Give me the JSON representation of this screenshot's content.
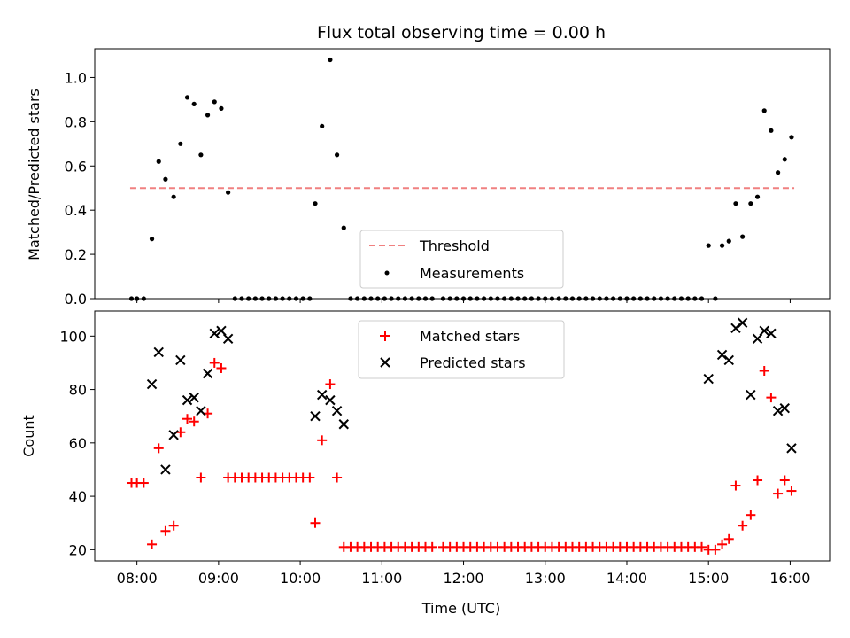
{
  "chart_data": [
    {
      "type": "scatter",
      "title": "Flux total observing time = 0.00 h",
      "xlabel": "",
      "ylabel": "Matched/Predicted stars",
      "ylim": [
        0,
        1.13
      ],
      "yticks": [
        "0.0",
        "0.2",
        "0.4",
        "0.6",
        "0.8",
        "1.0"
      ],
      "grid": false,
      "legend_position": "bottom-center",
      "threshold": {
        "name": "Threshold",
        "value": 0.5,
        "x_start": "07:55",
        "x_end": "16:03",
        "color": "#f08080",
        "style": "dashed"
      },
      "series": [
        {
          "name": "Measurements",
          "color": "#000000",
          "marker": "dot",
          "points": [
            [
              "07:56",
              0.0
            ],
            [
              "08:00",
              0.0
            ],
            [
              "08:05",
              0.0
            ],
            [
              "08:11",
              0.27
            ],
            [
              "08:16",
              0.62
            ],
            [
              "08:21",
              0.54
            ],
            [
              "08:27",
              0.46
            ],
            [
              "08:32",
              0.7
            ],
            [
              "08:37",
              0.91
            ],
            [
              "08:42",
              0.88
            ],
            [
              "08:47",
              0.65
            ],
            [
              "08:52",
              0.83
            ],
            [
              "08:57",
              0.89
            ],
            [
              "09:02",
              0.86
            ],
            [
              "09:07",
              0.48
            ],
            [
              "09:12",
              0.0
            ],
            [
              "09:17",
              0.0
            ],
            [
              "09:22",
              0.0
            ],
            [
              "09:27",
              0.0
            ],
            [
              "09:32",
              0.0
            ],
            [
              "09:37",
              0.0
            ],
            [
              "09:42",
              0.0
            ],
            [
              "09:47",
              0.0
            ],
            [
              "09:52",
              0.0
            ],
            [
              "09:57",
              0.0
            ],
            [
              "10:02",
              0.0
            ],
            [
              "10:07",
              0.0
            ],
            [
              "10:11",
              0.43
            ],
            [
              "10:16",
              0.78
            ],
            [
              "10:22",
              1.08
            ],
            [
              "10:27",
              0.65
            ],
            [
              "10:32",
              0.32
            ],
            [
              "10:37",
              0.0
            ],
            [
              "10:42",
              0.0
            ],
            [
              "10:47",
              0.0
            ],
            [
              "10:52",
              0.0
            ],
            [
              "10:57",
              0.0
            ],
            [
              "11:02",
              0.0
            ],
            [
              "11:07",
              0.0
            ],
            [
              "11:12",
              0.0
            ],
            [
              "11:17",
              0.0
            ],
            [
              "11:22",
              0.0
            ],
            [
              "11:27",
              0.0
            ],
            [
              "11:32",
              0.0
            ],
            [
              "11:37",
              0.0
            ],
            [
              "11:45",
              0.0
            ],
            [
              "11:50",
              0.0
            ],
            [
              "11:55",
              0.0
            ],
            [
              "12:00",
              0.0
            ],
            [
              "12:05",
              0.0
            ],
            [
              "12:10",
              0.0
            ],
            [
              "12:15",
              0.0
            ],
            [
              "12:20",
              0.0
            ],
            [
              "12:25",
              0.0
            ],
            [
              "12:30",
              0.0
            ],
            [
              "12:35",
              0.0
            ],
            [
              "12:40",
              0.0
            ],
            [
              "12:45",
              0.0
            ],
            [
              "12:50",
              0.0
            ],
            [
              "12:55",
              0.0
            ],
            [
              "13:00",
              0.0
            ],
            [
              "13:05",
              0.0
            ],
            [
              "13:10",
              0.0
            ],
            [
              "13:15",
              0.0
            ],
            [
              "13:20",
              0.0
            ],
            [
              "13:25",
              0.0
            ],
            [
              "13:30",
              0.0
            ],
            [
              "13:35",
              0.0
            ],
            [
              "13:40",
              0.0
            ],
            [
              "13:45",
              0.0
            ],
            [
              "13:50",
              0.0
            ],
            [
              "13:55",
              0.0
            ],
            [
              "14:00",
              0.0
            ],
            [
              "14:05",
              0.0
            ],
            [
              "14:10",
              0.0
            ],
            [
              "14:15",
              0.0
            ],
            [
              "14:20",
              0.0
            ],
            [
              "14:25",
              0.0
            ],
            [
              "14:30",
              0.0
            ],
            [
              "14:35",
              0.0
            ],
            [
              "14:40",
              0.0
            ],
            [
              "14:45",
              0.0
            ],
            [
              "14:50",
              0.0
            ],
            [
              "14:55",
              0.0
            ],
            [
              "15:00",
              0.24
            ],
            [
              "15:05",
              0.0
            ],
            [
              "15:10",
              0.24
            ],
            [
              "15:15",
              0.26
            ],
            [
              "15:20",
              0.43
            ],
            [
              "15:25",
              0.28
            ],
            [
              "15:31",
              0.43
            ],
            [
              "15:36",
              0.46
            ],
            [
              "15:41",
              0.85
            ],
            [
              "15:46",
              0.76
            ],
            [
              "15:51",
              0.57
            ],
            [
              "15:56",
              0.63
            ],
            [
              "16:01",
              0.73
            ]
          ]
        }
      ]
    },
    {
      "type": "scatter",
      "title": "",
      "xlabel": "Time (UTC)",
      "ylabel": "Count",
      "ylim": [
        15.8,
        109.4
      ],
      "yticks": [
        "20",
        "40",
        "60",
        "80",
        "100"
      ],
      "xlim": [
        "07:29",
        "16:29"
      ],
      "xticks": [
        "08:00",
        "09:00",
        "10:00",
        "11:00",
        "12:00",
        "13:00",
        "14:00",
        "15:00",
        "16:00"
      ],
      "grid": false,
      "legend_position": "top-center",
      "series": [
        {
          "name": "Matched stars",
          "color": "#ff0000",
          "marker": "plus",
          "points": [
            [
              "07:56",
              45
            ],
            [
              "08:00",
              45
            ],
            [
              "08:05",
              45
            ],
            [
              "08:11",
              22
            ],
            [
              "08:16",
              58
            ],
            [
              "08:21",
              27
            ],
            [
              "08:27",
              29
            ],
            [
              "08:32",
              64
            ],
            [
              "08:37",
              69
            ],
            [
              "08:42",
              68
            ],
            [
              "08:47",
              47
            ],
            [
              "08:52",
              71
            ],
            [
              "08:57",
              90
            ],
            [
              "09:02",
              88
            ],
            [
              "09:07",
              47
            ],
            [
              "09:12",
              47
            ],
            [
              "09:17",
              47
            ],
            [
              "09:22",
              47
            ],
            [
              "09:27",
              47
            ],
            [
              "09:32",
              47
            ],
            [
              "09:37",
              47
            ],
            [
              "09:42",
              47
            ],
            [
              "09:47",
              47
            ],
            [
              "09:52",
              47
            ],
            [
              "09:57",
              47
            ],
            [
              "10:02",
              47
            ],
            [
              "10:07",
              47
            ],
            [
              "10:11",
              30
            ],
            [
              "10:16",
              61
            ],
            [
              "10:22",
              82
            ],
            [
              "10:27",
              47
            ],
            [
              "10:32",
              21
            ],
            [
              "10:37",
              21
            ],
            [
              "10:42",
              21
            ],
            [
              "10:47",
              21
            ],
            [
              "10:52",
              21
            ],
            [
              "10:57",
              21
            ],
            [
              "11:02",
              21
            ],
            [
              "11:07",
              21
            ],
            [
              "11:12",
              21
            ],
            [
              "11:17",
              21
            ],
            [
              "11:22",
              21
            ],
            [
              "11:27",
              21
            ],
            [
              "11:32",
              21
            ],
            [
              "11:37",
              21
            ],
            [
              "11:45",
              21
            ],
            [
              "11:50",
              21
            ],
            [
              "11:55",
              21
            ],
            [
              "12:00",
              21
            ],
            [
              "12:05",
              21
            ],
            [
              "12:10",
              21
            ],
            [
              "12:15",
              21
            ],
            [
              "12:20",
              21
            ],
            [
              "12:25",
              21
            ],
            [
              "12:30",
              21
            ],
            [
              "12:35",
              21
            ],
            [
              "12:40",
              21
            ],
            [
              "12:45",
              21
            ],
            [
              "12:50",
              21
            ],
            [
              "12:55",
              21
            ],
            [
              "13:00",
              21
            ],
            [
              "13:05",
              21
            ],
            [
              "13:10",
              21
            ],
            [
              "13:15",
              21
            ],
            [
              "13:20",
              21
            ],
            [
              "13:25",
              21
            ],
            [
              "13:30",
              21
            ],
            [
              "13:35",
              21
            ],
            [
              "13:40",
              21
            ],
            [
              "13:45",
              21
            ],
            [
              "13:50",
              21
            ],
            [
              "13:55",
              21
            ],
            [
              "14:00",
              21
            ],
            [
              "14:05",
              21
            ],
            [
              "14:10",
              21
            ],
            [
              "14:15",
              21
            ],
            [
              "14:20",
              21
            ],
            [
              "14:25",
              21
            ],
            [
              "14:30",
              21
            ],
            [
              "14:35",
              21
            ],
            [
              "14:40",
              21
            ],
            [
              "14:45",
              21
            ],
            [
              "14:50",
              21
            ],
            [
              "14:55",
              21
            ],
            [
              "15:00",
              20
            ],
            [
              "15:05",
              20
            ],
            [
              "15:10",
              22
            ],
            [
              "15:15",
              24
            ],
            [
              "15:20",
              44
            ],
            [
              "15:25",
              29
            ],
            [
              "15:31",
              33
            ],
            [
              "15:36",
              46
            ],
            [
              "15:41",
              87
            ],
            [
              "15:46",
              77
            ],
            [
              "15:51",
              41
            ],
            [
              "15:56",
              46
            ],
            [
              "16:01",
              42
            ]
          ]
        },
        {
          "name": "Predicted stars",
          "color": "#000000",
          "marker": "x",
          "points": [
            [
              "08:11",
              82
            ],
            [
              "08:16",
              94
            ],
            [
              "08:21",
              50
            ],
            [
              "08:27",
              63
            ],
            [
              "08:32",
              91
            ],
            [
              "08:37",
              76
            ],
            [
              "08:42",
              77
            ],
            [
              "08:47",
              72
            ],
            [
              "08:52",
              86
            ],
            [
              "08:57",
              101
            ],
            [
              "09:02",
              102
            ],
            [
              "09:07",
              99
            ],
            [
              "10:11",
              70
            ],
            [
              "10:16",
              78
            ],
            [
              "10:22",
              76
            ],
            [
              "10:27",
              72
            ],
            [
              "10:32",
              67
            ],
            [
              "15:00",
              84
            ],
            [
              "15:10",
              93
            ],
            [
              "15:15",
              91
            ],
            [
              "15:20",
              103
            ],
            [
              "15:25",
              105
            ],
            [
              "15:31",
              78
            ],
            [
              "15:36",
              99
            ],
            [
              "15:41",
              102
            ],
            [
              "15:46",
              101
            ],
            [
              "15:51",
              72
            ],
            [
              "15:56",
              73
            ],
            [
              "16:01",
              58
            ]
          ]
        }
      ]
    }
  ]
}
